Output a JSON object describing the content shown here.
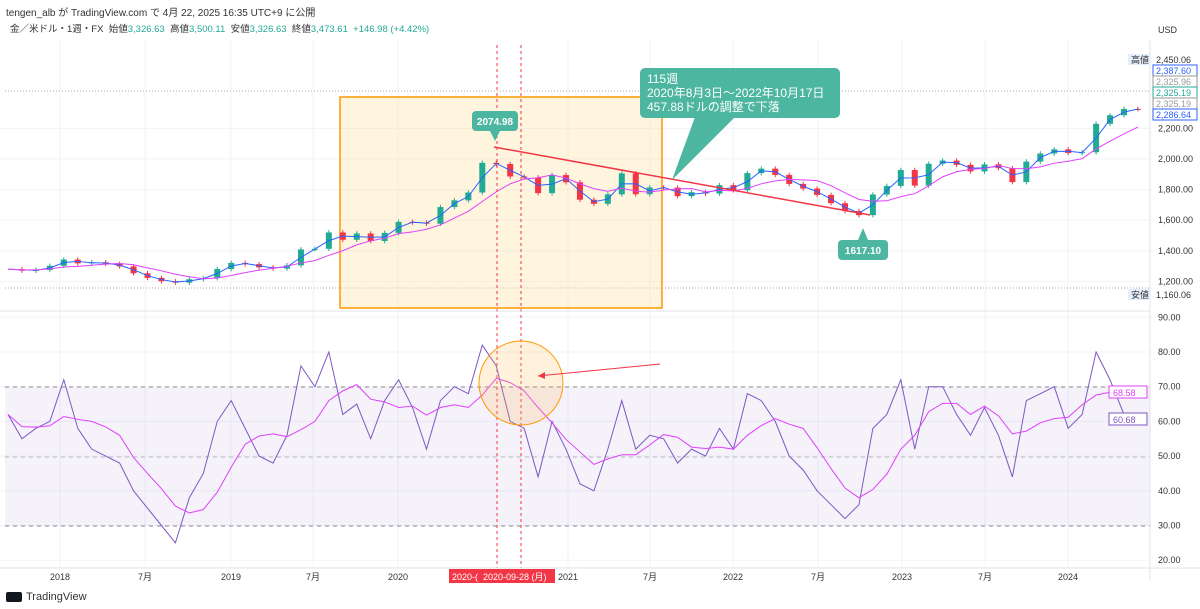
{
  "published": "tengen_alb が TradingView.com で 4月 22, 2025 16:35 UTC+9 に公開",
  "legend": {
    "symbol": "金／米ドル・1週・FX",
    "open_label": "始値",
    "open": "3,326.63",
    "high_label": "高値",
    "high": "3,500.11",
    "low_label": "安値",
    "low": "3,326.63",
    "close_label": "終値",
    "close": "3,473.61",
    "change": "+146.98 (+4.42%)"
  },
  "currency": "USD",
  "price_badges": [
    {
      "text": "2,450.06",
      "tag": "高値"
    },
    {
      "text": "2,387.60"
    },
    {
      "text": "2,325.96"
    },
    {
      "text": "2,325.19"
    },
    {
      "text": "2,325.19"
    },
    {
      "text": "2,286.64"
    },
    {
      "text": "1,160.06",
      "tag": "安値"
    }
  ],
  "rsi_badges": [
    "68.58",
    "60.68"
  ],
  "annotations": {
    "high_label": "2074.98",
    "low_label": "1617.10",
    "callout": [
      "115週",
      "2020年8月3日～2022年10月17日",
      "457.88ドルの調整で下落"
    ]
  },
  "crosshair": {
    "date1": "2020-(",
    "date2": "2020-09-28 (月)"
  },
  "footer": "TradingView",
  "colors": {
    "up": "#22ab94",
    "down": "#f23645",
    "ma": "#2962ff",
    "rsi": "#7e57c2",
    "rsi_ma": "#e040fb",
    "box": "#ff9800",
    "trend": "#f23645",
    "callout": "#4db6a0"
  },
  "chart_data": [
    {
      "type": "candlestick",
      "title": "金／米ドル・1週・FX",
      "ylabel": "USD",
      "ylim": [
        1150,
        2500
      ],
      "yticks": [
        "2,000.00",
        "1,800.00",
        "1,600.00",
        "1,400.00",
        "1,200.00",
        "2,200.00"
      ],
      "xticks": [
        "2018",
        "7月",
        "2019",
        "7月",
        "2020",
        "2021",
        "7月",
        "2022",
        "7月",
        "2023",
        "7月",
        "2024"
      ],
      "x_start": "2017-09",
      "interval": "month",
      "close": [
        1280,
        1270,
        1275,
        1302,
        1343,
        1318,
        1325,
        1315,
        1298,
        1253,
        1223,
        1201,
        1192,
        1214,
        1222,
        1281,
        1321,
        1313,
        1292,
        1284,
        1305,
        1409,
        1413,
        1520,
        1472,
        1513,
        1464,
        1517,
        1589,
        1585,
        1577,
        1686,
        1730,
        1781,
        1975,
        1967,
        1886,
        1879,
        1777,
        1895,
        1848,
        1734,
        1707,
        1769,
        1906,
        1770,
        1814,
        1813,
        1757,
        1783,
        1774,
        1829,
        1796,
        1908,
        1937,
        1896,
        1837,
        1807,
        1765,
        1711,
        1660,
        1633,
        1768,
        1824,
        1928,
        1826,
        1969,
        1990,
        1962,
        1919,
        1965,
        1940,
        1849,
        1983,
        2036,
        2063,
        2039,
        2044,
        2230,
        2286,
        2327,
        2326
      ]
    },
    {
      "type": "line",
      "title": "RSI",
      "ylim": [
        15,
        95
      ],
      "yticks": [
        "90.00",
        "80.00",
        "70.00",
        "60.00",
        "50.00",
        "40.00",
        "30.00",
        "20.00"
      ],
      "bands": [
        30,
        70
      ],
      "rsi": [
        62,
        55,
        58,
        60,
        72,
        58,
        52,
        50,
        48,
        40,
        35,
        30,
        25,
        38,
        45,
        60,
        66,
        58,
        50,
        48,
        56,
        76,
        70,
        80,
        62,
        65,
        55,
        66,
        72,
        64,
        52,
        66,
        70,
        68,
        82,
        76,
        60,
        58,
        44,
        60,
        52,
        42,
        40,
        52,
        66,
        52,
        56,
        55,
        48,
        52,
        50,
        58,
        52,
        68,
        66,
        60,
        50,
        46,
        40,
        36,
        32,
        36,
        58,
        62,
        72,
        52,
        70,
        70,
        62,
        56,
        64,
        56,
        44,
        66,
        68,
        70,
        58,
        62,
        80,
        72,
        62,
        61
      ]
    }
  ]
}
